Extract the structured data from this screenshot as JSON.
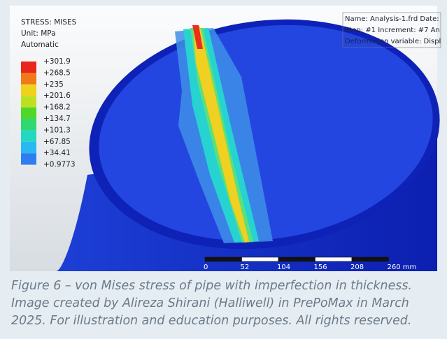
{
  "legend": {
    "title": "STRESS: MISES",
    "unit": "Unit: MPa",
    "mode": "Automatic",
    "labels": [
      "+301.9",
      "+268.5",
      "+235",
      "+201.6",
      "+168.2",
      "+134.7",
      "+101.3",
      "+67.85",
      "+34.41",
      "+0.9773"
    ]
  },
  "info": {
    "lines": [
      "Name: Analysis-1.frd  Date:",
      "Step: #1  Increment: #7  An",
      "Deformation variable: Displ"
    ]
  },
  "scale_bar": {
    "labels": [
      "0",
      "52",
      "104",
      "156",
      "208",
      "260 mm"
    ]
  },
  "caption": {
    "lines": [
      "Figure 6 – von Mises stress of pipe with imperfection in thickness.",
      "Image created by Alireza Shirani (Halliwell) in PrePoMax in March",
      "2025. For illustration and education purposes. All rights reserved."
    ]
  }
}
